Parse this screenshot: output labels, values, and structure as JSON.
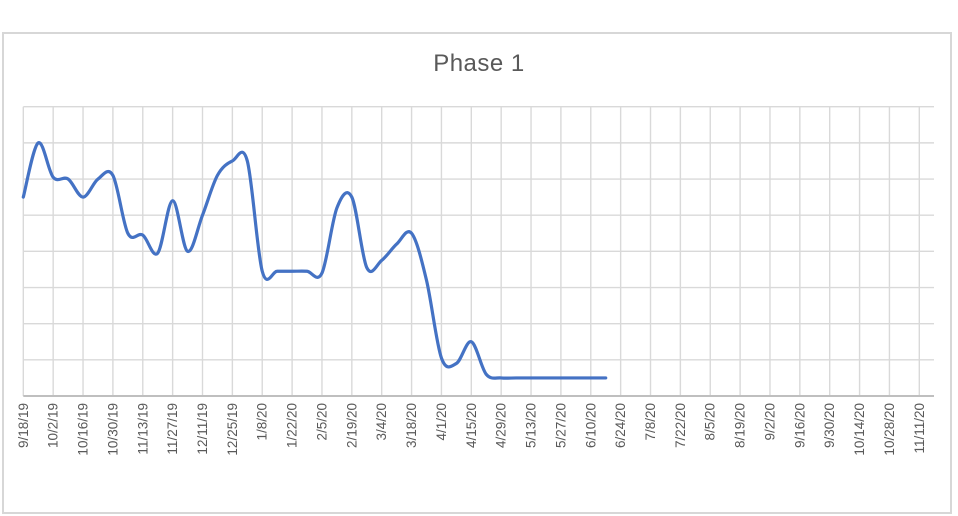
{
  "chart_data": {
    "type": "line",
    "title": "Phase 1",
    "xlabel": "",
    "ylabel": "",
    "legend": "none",
    "grid": true,
    "smooth_line": true,
    "x_label_rotation_deg": -90,
    "x_tick_interval_days": 14,
    "y_axis_labels_visible": false,
    "ylim": [
      0,
      8
    ],
    "y_gridline_step": 1,
    "categories": [
      "9/18/19",
      "10/2/19",
      "10/16/19",
      "10/30/19",
      "11/13/19",
      "11/27/19",
      "12/11/19",
      "12/25/19",
      "1/8/20",
      "1/22/20",
      "2/5/20",
      "2/19/20",
      "3/4/20",
      "3/18/20",
      "4/1/20",
      "4/15/20",
      "4/29/20",
      "5/13/20",
      "5/27/20",
      "6/10/20",
      "6/24/20",
      "7/8/20",
      "7/22/20",
      "8/5/20",
      "8/19/20",
      "9/2/20",
      "9/16/20",
      "9/30/20",
      "10/14/20",
      "10/28/20",
      "11/11/20"
    ],
    "series": [
      {
        "name": "Phase 1",
        "start_date": "9/18/19",
        "end_date": "6/17/20",
        "point_interval_days": 7,
        "values_grid_units": [
          5.5,
          7.0,
          6.05,
          6.0,
          5.5,
          6.0,
          6.1,
          4.5,
          4.45,
          3.95,
          5.4,
          4.0,
          5.0,
          6.1,
          6.5,
          6.5,
          3.45,
          3.45,
          3.45,
          3.45,
          3.4,
          5.2,
          5.5,
          3.55,
          3.75,
          4.2,
          4.5,
          3.2,
          1.05,
          0.9,
          1.5,
          0.6,
          0.5,
          0.5,
          0.5,
          0.5,
          0.5,
          0.5,
          0.5,
          0.5
        ]
      }
    ],
    "colors": {
      "line": "#4472C4",
      "gridline": "#D9D9D9",
      "axis_line": "#BFBFBF",
      "text": "#595959",
      "chart_border": "#D7D7D7",
      "background": "#FFFFFF"
    }
  }
}
